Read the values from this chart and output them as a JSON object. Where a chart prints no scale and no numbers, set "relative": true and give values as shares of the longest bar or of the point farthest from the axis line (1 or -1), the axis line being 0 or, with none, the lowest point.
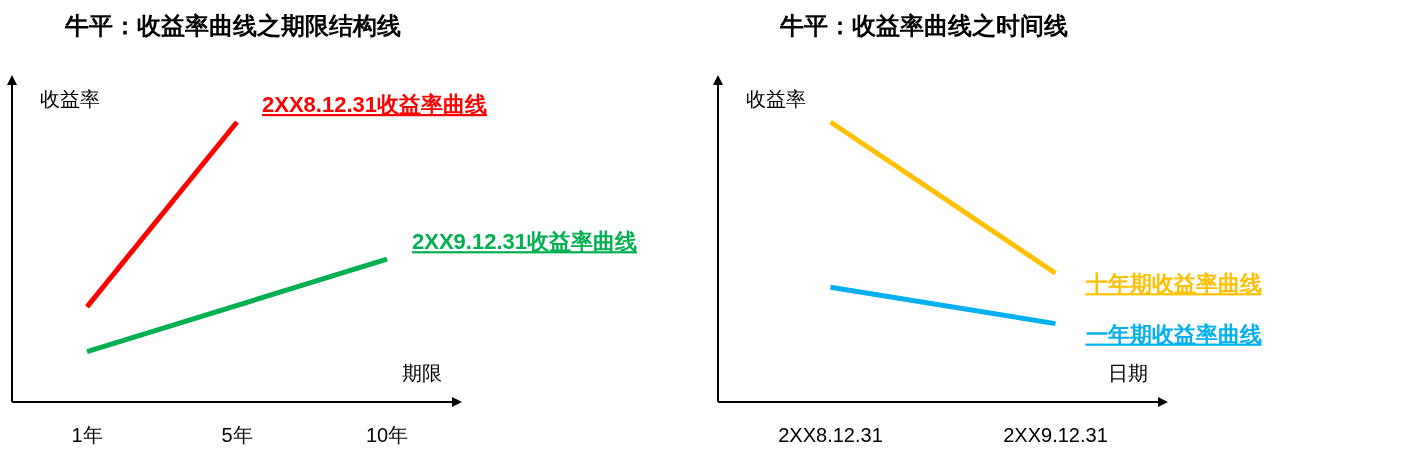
{
  "chart_data": [
    {
      "type": "line",
      "title": "牛平：收益率曲线之期限结构线",
      "xlabel": "期限",
      "ylabel": "收益率",
      "relative": true,
      "categories": [
        "1年",
        "5年",
        "10年"
      ],
      "series": [
        {
          "name": "2XX8.12.31收益率曲线",
          "color": "#ff0000",
          "values": [
            0.34,
            1,
            null
          ]
        },
        {
          "name": "2XX9.12.31收益率曲线",
          "color": "#00b050",
          "values": [
            0.18,
            null,
            0.51
          ]
        }
      ]
    },
    {
      "type": "line",
      "title": "牛平：收益率曲线之时间线",
      "xlabel": "日期",
      "ylabel": "收益率",
      "relative": true,
      "categories": [
        "2XX8.12.31",
        "2XX9.12.31"
      ],
      "series": [
        {
          "name": "十年期收益率曲线",
          "color": "#ffc000",
          "values": [
            1,
            0.46
          ]
        },
        {
          "name": "一年期收益率曲线",
          "color": "#00b0f0",
          "values": [
            0.41,
            0.28
          ]
        }
      ]
    }
  ]
}
